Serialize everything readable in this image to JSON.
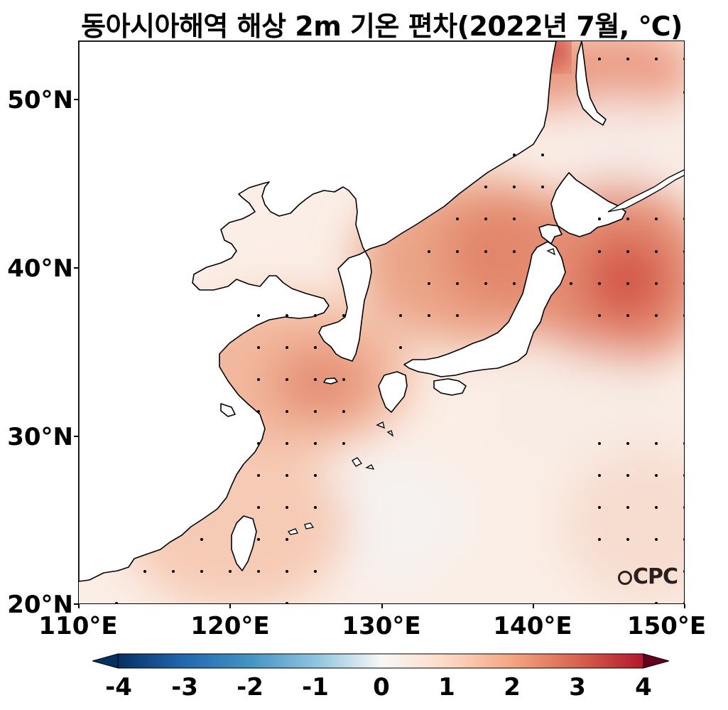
{
  "title": "동아시아해역 해상 2m 기온 편차(2022년 7월, ℃)",
  "logo": "CPC",
  "y_axis": {
    "labels": [
      "50°N",
      "40°N",
      "30°N",
      "20°N"
    ],
    "values": [
      50,
      40,
      30,
      20
    ]
  },
  "x_axis": {
    "labels": [
      "110°E",
      "120°E",
      "130°E",
      "140°E",
      "150°E"
    ],
    "values": [
      110,
      120,
      130,
      140,
      150
    ]
  },
  "map_extent": {
    "lon": [
      110,
      150
    ],
    "lat": [
      20,
      53.5
    ]
  },
  "colorbar": {
    "labels": [
      "-4",
      "-3",
      "-2",
      "-1",
      "0",
      "1",
      "2",
      "3",
      "4"
    ],
    "min": -4,
    "max": 4,
    "colors": [
      "#053061",
      "#2166ac",
      "#4393c3",
      "#92c5de",
      "#f7f7f7",
      "#fddbc7",
      "#f4a582",
      "#d6604d",
      "#b2182b",
      "#67001f"
    ]
  },
  "colors": {
    "land": "#ffffff",
    "coast": "#000000",
    "stipple": "#000000"
  }
}
